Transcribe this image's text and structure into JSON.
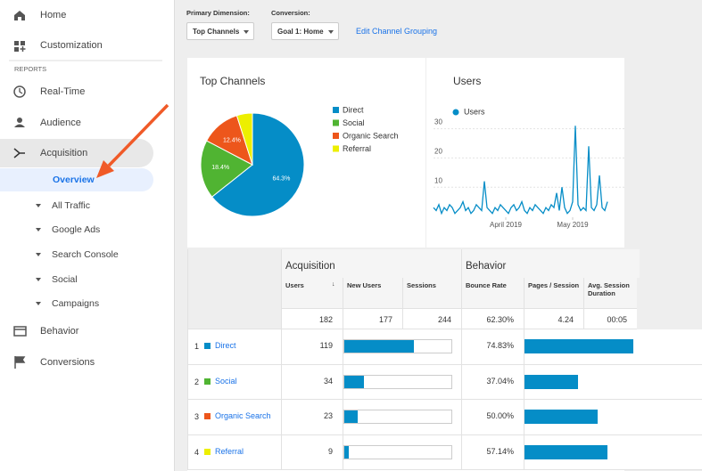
{
  "sidebar": {
    "top_items": [
      "Home",
      "Customization"
    ],
    "section_label": "REPORTS",
    "reports": [
      "Real-Time",
      "Audience",
      "Acquisition"
    ],
    "acquisition_sub": [
      "Overview",
      "All Traffic",
      "Google Ads",
      "Search Console",
      "Social",
      "Campaigns"
    ],
    "more": [
      "Behavior",
      "Conversions"
    ]
  },
  "toolbar": {
    "primary_dimension_label": "Primary Dimension:",
    "primary_dimension": "Top Channels",
    "conversion_label": "Conversion:",
    "conversion": "Goal 1: Home",
    "edit_link": "Edit Channel Grouping"
  },
  "top_channels": {
    "type": "pie",
    "title": "Top Channels",
    "categories": [
      "Direct",
      "Social",
      "Organic Search",
      "Referral"
    ],
    "values": [
      64.3,
      18.4,
      12.4,
      4.9
    ],
    "value_labels": [
      "64.3%",
      "18.4%",
      "12.4%",
      null
    ],
    "colors": [
      "#058dc7",
      "#50b432",
      "#ed561b",
      "#edef00"
    ]
  },
  "users_chart": {
    "type": "line",
    "title": "Users",
    "series": [
      {
        "name": "Users",
        "color": "#058dc7",
        "values": [
          3,
          2,
          4,
          1,
          3,
          2,
          4,
          3,
          1,
          2,
          3,
          5,
          2,
          3,
          1,
          2,
          4,
          3,
          2,
          12,
          3,
          2,
          1,
          3,
          2,
          4,
          3,
          2,
          1,
          3,
          4,
          2,
          3,
          5,
          2,
          1,
          3,
          2,
          4,
          3,
          2,
          1,
          3,
          2,
          4,
          3,
          8,
          2,
          10,
          3,
          1,
          2,
          5,
          31,
          4,
          2,
          3,
          2,
          24,
          3,
          2,
          4,
          14,
          3,
          2,
          5
        ]
      }
    ],
    "ylim": [
      0,
      32
    ],
    "yticks": [
      10,
      20,
      30
    ],
    "xlim": [
      0,
      65
    ],
    "xticks": [
      {
        "value": 27,
        "label": "April 2019"
      },
      {
        "value": 52,
        "label": "May 2019"
      }
    ],
    "grid": true
  },
  "table": {
    "groups": [
      "Acquisition",
      "Behavior"
    ],
    "columns": [
      "Users",
      "New Users",
      "Sessions",
      "Bounce Rate",
      "Pages / Session",
      "Avg. Session Duration"
    ],
    "totals": {
      "users": 182,
      "new_users": 177,
      "sessions": 244,
      "bounce_rate": "62.30%",
      "pages_per_session": 4.24,
      "avg_session_duration": "00:05"
    },
    "rows": [
      {
        "rank": 1,
        "channel": "Direct",
        "users": 119,
        "new_users": 115,
        "bounce_rate": 74.83,
        "bounce_rate_label": "74.83%"
      },
      {
        "rank": 2,
        "channel": "Social",
        "users": 34,
        "new_users": 32,
        "bounce_rate": 37.04,
        "bounce_rate_label": "37.04%"
      },
      {
        "rank": 3,
        "channel": "Organic Search",
        "users": 23,
        "new_users": 22,
        "bounce_rate": 50.0,
        "bounce_rate_label": "50.00%"
      },
      {
        "rank": 4,
        "channel": "Referral",
        "users": 9,
        "new_users": 8,
        "bounce_rate": 57.14,
        "bounce_rate_label": "57.14%"
      }
    ]
  }
}
